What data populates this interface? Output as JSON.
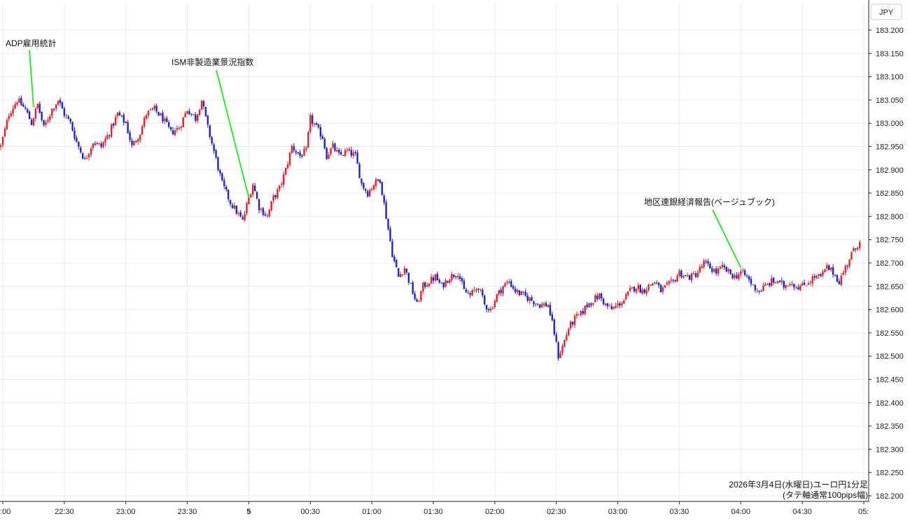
{
  "currency_label": "JPY",
  "caption": [
    "2026年3月4日(水曜日)ユーロ円1分足",
    "(タテ軸通常100pips幅)"
  ],
  "colors": {
    "up": "#e0202a",
    "down": "#1f22c8",
    "grid": "#e6edf1",
    "annotation_line": "#33e633",
    "axis": "#222222"
  },
  "chart_data": {
    "type": "candlestick",
    "title": "",
    "ylim": [
      182.2,
      183.2
    ],
    "y_ticks": [
      "182.200",
      "182.250",
      "182.300",
      "182.350",
      "182.400",
      "182.450",
      "182.500",
      "182.550",
      "182.600",
      "182.650",
      "182.700",
      "182.750",
      "182.800",
      "182.850",
      "182.900",
      "182.950",
      "183.000",
      "183.050",
      "183.100",
      "183.150",
      "183.200"
    ],
    "x_range": [
      "21:59",
      "05:04"
    ],
    "x_ticks": [
      {
        "time": "22:00",
        "label": ":00"
      },
      {
        "time": "22:30",
        "label": "22:30"
      },
      {
        "time": "23:00",
        "label": "23:00"
      },
      {
        "time": "23:30",
        "label": "23:30"
      },
      {
        "time": "00:00",
        "label": "5"
      },
      {
        "time": "00:30",
        "label": "00:30"
      },
      {
        "time": "01:00",
        "label": "01:00"
      },
      {
        "time": "01:30",
        "label": "01:30"
      },
      {
        "time": "02:00",
        "label": "02:00"
      },
      {
        "time": "02:30",
        "label": "02:30"
      },
      {
        "time": "03:00",
        "label": "03:00"
      },
      {
        "time": "03:30",
        "label": "03:30"
      },
      {
        "time": "04:00",
        "label": "04:00"
      },
      {
        "time": "04:30",
        "label": "04:30"
      },
      {
        "time": "05:00",
        "label": "05:"
      }
    ],
    "interval": "1分",
    "price_path": [
      [
        "21:59",
        182.95
      ],
      [
        "22:03",
        183.02
      ],
      [
        "22:07",
        183.05
      ],
      [
        "22:11",
        183.03
      ],
      [
        "22:14",
        183.0
      ],
      [
        "22:17",
        183.04
      ],
      [
        "22:20",
        182.99
      ],
      [
        "22:24",
        183.03
      ],
      [
        "22:27",
        183.05
      ],
      [
        "22:30",
        183.02
      ],
      [
        "22:33",
        183.0
      ],
      [
        "22:36",
        182.96
      ],
      [
        "22:40",
        182.92
      ],
      [
        "22:44",
        182.96
      ],
      [
        "22:48",
        182.95
      ],
      [
        "22:52",
        182.98
      ],
      [
        "22:56",
        183.02
      ],
      [
        "23:00",
        183.0
      ],
      [
        "23:03",
        182.95
      ],
      [
        "23:07",
        182.98
      ],
      [
        "23:10",
        183.02
      ],
      [
        "23:14",
        183.03
      ],
      [
        "23:18",
        183.01
      ],
      [
        "23:22",
        182.98
      ],
      [
        "23:26",
        182.99
      ],
      [
        "23:30",
        183.03
      ],
      [
        "23:34",
        183.01
      ],
      [
        "23:37",
        183.05
      ],
      [
        "23:40",
        182.99
      ],
      [
        "23:43",
        182.94
      ],
      [
        "23:47",
        182.87
      ],
      [
        "23:51",
        182.83
      ],
      [
        "23:54",
        182.81
      ],
      [
        "23:57",
        182.79
      ],
      [
        "00:00",
        182.84
      ],
      [
        "00:02",
        182.87
      ],
      [
        "00:05",
        182.82
      ],
      [
        "00:09",
        182.8
      ],
      [
        "00:12",
        182.84
      ],
      [
        "00:15",
        182.86
      ],
      [
        "00:18",
        182.9
      ],
      [
        "00:21",
        182.95
      ],
      [
        "00:25",
        182.93
      ],
      [
        "00:28",
        182.94
      ],
      [
        "00:30",
        183.01
      ],
      [
        "00:33",
        182.99
      ],
      [
        "00:36",
        182.97
      ],
      [
        "00:38",
        182.93
      ],
      [
        "00:41",
        182.95
      ],
      [
        "00:44",
        182.93
      ],
      [
        "00:48",
        182.94
      ],
      [
        "00:52",
        182.93
      ],
      [
        "00:55",
        182.87
      ],
      [
        "00:58",
        182.85
      ],
      [
        "01:01",
        182.87
      ],
      [
        "01:04",
        182.88
      ],
      [
        "01:07",
        182.8
      ],
      [
        "01:10",
        182.72
      ],
      [
        "01:13",
        182.67
      ],
      [
        "01:16",
        182.69
      ],
      [
        "01:19",
        182.65
      ],
      [
        "01:22",
        182.61
      ],
      [
        "01:25",
        182.65
      ],
      [
        "01:28",
        182.66
      ],
      [
        "01:31",
        182.67
      ],
      [
        "01:34",
        182.65
      ],
      [
        "01:38",
        182.67
      ],
      [
        "01:42",
        182.68
      ],
      [
        "01:45",
        182.64
      ],
      [
        "01:48",
        182.63
      ],
      [
        "01:52",
        182.65
      ],
      [
        "01:55",
        182.61
      ],
      [
        "01:58",
        182.6
      ],
      [
        "02:01",
        182.63
      ],
      [
        "02:04",
        182.65
      ],
      [
        "02:07",
        182.66
      ],
      [
        "02:10",
        182.64
      ],
      [
        "02:14",
        182.63
      ],
      [
        "02:18",
        182.62
      ],
      [
        "02:22",
        182.61
      ],
      [
        "02:26",
        182.61
      ],
      [
        "02:29",
        182.55
      ],
      [
        "02:31",
        182.5
      ],
      [
        "02:33",
        182.52
      ],
      [
        "02:36",
        182.56
      ],
      [
        "02:39",
        182.58
      ],
      [
        "02:42",
        182.59
      ],
      [
        "02:45",
        182.61
      ],
      [
        "02:48",
        182.62
      ],
      [
        "02:51",
        182.63
      ],
      [
        "02:54",
        182.61
      ],
      [
        "02:57",
        182.6
      ],
      [
        "03:00",
        182.61
      ],
      [
        "03:03",
        182.62
      ],
      [
        "03:06",
        182.64
      ],
      [
        "03:09",
        182.65
      ],
      [
        "03:12",
        182.64
      ],
      [
        "03:15",
        182.65
      ],
      [
        "03:18",
        182.66
      ],
      [
        "03:21",
        182.64
      ],
      [
        "03:24",
        182.65
      ],
      [
        "03:27",
        182.66
      ],
      [
        "03:30",
        182.68
      ],
      [
        "03:33",
        182.67
      ],
      [
        "03:36",
        182.67
      ],
      [
        "03:39",
        182.68
      ],
      [
        "03:42",
        182.7
      ],
      [
        "03:45",
        182.69
      ],
      [
        "03:48",
        182.68
      ],
      [
        "03:51",
        182.69
      ],
      [
        "03:54",
        182.68
      ],
      [
        "03:57",
        182.67
      ],
      [
        "04:00",
        182.68
      ],
      [
        "04:03",
        182.67
      ],
      [
        "04:06",
        182.65
      ],
      [
        "04:09",
        182.64
      ],
      [
        "04:12",
        182.65
      ],
      [
        "04:15",
        182.66
      ],
      [
        "04:18",
        182.66
      ],
      [
        "04:21",
        182.65
      ],
      [
        "04:24",
        182.66
      ],
      [
        "04:27",
        182.65
      ],
      [
        "04:30",
        182.65
      ],
      [
        "04:33",
        182.66
      ],
      [
        "04:36",
        182.67
      ],
      [
        "04:39",
        182.67
      ],
      [
        "04:42",
        182.69
      ],
      [
        "04:45",
        182.68
      ],
      [
        "04:48",
        182.66
      ],
      [
        "04:51",
        182.69
      ],
      [
        "04:54",
        182.72
      ],
      [
        "04:56",
        182.73
      ],
      [
        "04:58",
        182.75
      ]
    ],
    "annotations": [
      {
        "label": "ADP雇用統計",
        "time": "22:15",
        "price": 183.035
      },
      {
        "label": "ISM非製造業景況指数",
        "time": "00:00",
        "price": 182.84
      },
      {
        "label": "地区連銀経済報告(ベージュブック)",
        "time": "04:00",
        "price": 182.69
      }
    ]
  }
}
